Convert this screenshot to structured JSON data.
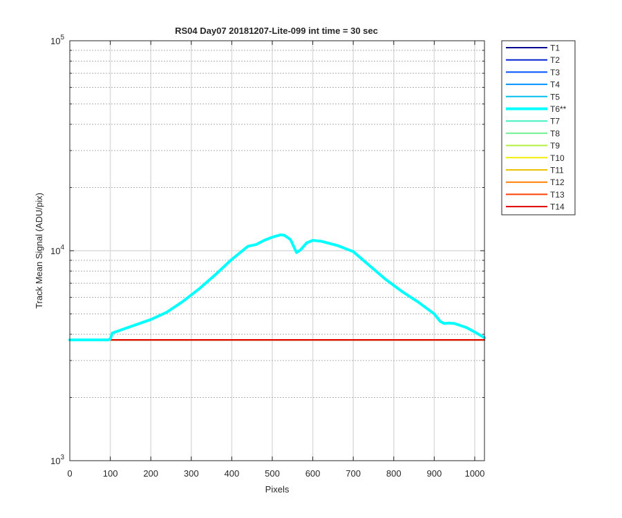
{
  "chart_data": {
    "type": "line",
    "title": "RS04 Day07 20181207-Lite-099 int time = 30 sec",
    "xlabel": "Pixels",
    "ylabel": "Track Mean Signal (ADU/pix)",
    "xlim": [
      0,
      1024
    ],
    "ylim": [
      1000,
      100000
    ],
    "yscale": "log",
    "grid": true,
    "legend_position": "outside-top-right",
    "x_ticks": [
      0,
      100,
      200,
      300,
      400,
      500,
      600,
      700,
      800,
      900,
      1000
    ],
    "x_tick_labels": [
      "0",
      "100",
      "200",
      "300",
      "400",
      "500",
      "600",
      "700",
      "800",
      "900",
      "1000"
    ],
    "y_tick_labels": [
      {
        "base": "10",
        "exp": "3",
        "value": 1000
      },
      {
        "base": "10",
        "exp": "4",
        "value": 10000
      },
      {
        "base": "10",
        "exp": "5",
        "value": 100000
      }
    ],
    "series": [
      {
        "name": "T1",
        "color": "#00008f",
        "width": 2,
        "x": [
          0,
          1024
        ],
        "y": [
          3760,
          3760
        ]
      },
      {
        "name": "T2",
        "color": "#0020cf",
        "width": 2,
        "x": [
          0,
          1024
        ],
        "y": [
          3760,
          3760
        ]
      },
      {
        "name": "T3",
        "color": "#0050ff",
        "width": 2,
        "x": [
          0,
          1024
        ],
        "y": [
          3760,
          3760
        ]
      },
      {
        "name": "T4",
        "color": "#0090ff",
        "width": 2,
        "x": [
          0,
          1024
        ],
        "y": [
          3760,
          3760
        ]
      },
      {
        "name": "T5",
        "color": "#00c0f0",
        "width": 2,
        "x": [
          0,
          1024
        ],
        "y": [
          3760,
          3760
        ]
      },
      {
        "name": "T6**",
        "color": "#00ffff",
        "width": 4,
        "x": [
          0,
          95,
          100,
          105,
          120,
          150,
          200,
          240,
          280,
          320,
          360,
          400,
          440,
          460,
          480,
          500,
          520,
          530,
          545,
          560,
          570,
          585,
          600,
          620,
          660,
          700,
          740,
          780,
          820,
          860,
          900,
          915,
          925,
          935,
          950,
          980,
          1000,
          1024
        ],
        "y": [
          3760,
          3760,
          3800,
          4050,
          4150,
          4350,
          4700,
          5100,
          5750,
          6600,
          7700,
          9100,
          10500,
          10700,
          11200,
          11600,
          11900,
          11850,
          11300,
          9800,
          10100,
          10900,
          11200,
          11100,
          10600,
          9900,
          8500,
          7300,
          6400,
          5700,
          5000,
          4600,
          4500,
          4520,
          4500,
          4300,
          4100,
          3850
        ]
      },
      {
        "name": "T7",
        "color": "#40f0c0",
        "width": 2,
        "x": [
          0,
          1024
        ],
        "y": [
          3760,
          3760
        ]
      },
      {
        "name": "T8",
        "color": "#70f090",
        "width": 2,
        "x": [
          0,
          1024
        ],
        "y": [
          3760,
          3760
        ]
      },
      {
        "name": "T9",
        "color": "#b0f040",
        "width": 2,
        "x": [
          0,
          1024
        ],
        "y": [
          3760,
          3760
        ]
      },
      {
        "name": "T10",
        "color": "#f0f000",
        "width": 2,
        "x": [
          0,
          1024
        ],
        "y": [
          3760,
          3760
        ]
      },
      {
        "name": "T11",
        "color": "#f0c000",
        "width": 2,
        "x": [
          0,
          1024
        ],
        "y": [
          3760,
          3760
        ]
      },
      {
        "name": "T12",
        "color": "#ff8000",
        "width": 2,
        "x": [
          0,
          1024
        ],
        "y": [
          3760,
          3760
        ]
      },
      {
        "name": "T13",
        "color": "#ff4000",
        "width": 2,
        "x": [
          0,
          1024
        ],
        "y": [
          3760,
          3760
        ]
      },
      {
        "name": "T14",
        "color": "#e00000",
        "width": 2,
        "x": [
          0,
          1024
        ],
        "y": [
          3760,
          3760
        ]
      }
    ]
  }
}
